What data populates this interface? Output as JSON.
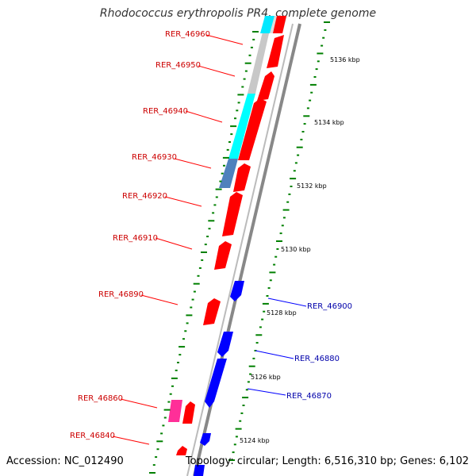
{
  "title": "Rhodococcus erythropolis PR4, complete genome",
  "footer": {
    "accession": "Accession: NC_012490",
    "summary": "Topology: circular; Length: 6,516,310 bp; Genes: 6,102"
  },
  "colors": {
    "forward_gene": "#ff0000",
    "reverse_gene": "#0000ff",
    "pink_gene": "#ff2f98",
    "cyan_gene": "#00ffff",
    "steel_gene": "#4f81bd",
    "grey_gene": "#c0c0c0",
    "backbone": "#999999",
    "tick": "#008000",
    "forward_label": "#cc0000",
    "reverse_label": "#0000aa"
  },
  "scale_labels": [
    "5136 kbp",
    "5134 kbp",
    "5132 kbp",
    "5130 kbp",
    "5128 kbp",
    "5126 kbp",
    "5124 kbp"
  ],
  "gene_labels": {
    "forward": [
      "RER_46960",
      "RER_46950",
      "RER_46940",
      "RER_46930",
      "RER_46920",
      "RER_46910",
      "RER_46890",
      "RER_46860",
      "RER_46840"
    ],
    "reverse": [
      "RER_46900",
      "RER_46880",
      "RER_46870"
    ]
  }
}
